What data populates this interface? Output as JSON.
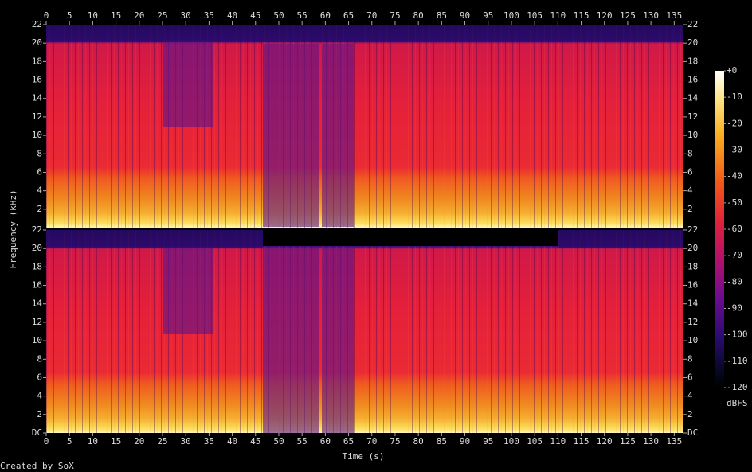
{
  "chart_data": {
    "type": "spectrogram",
    "xlabel": "Time (s)",
    "ylabel": "Frequency (kHz)",
    "footer": "Created by SoX",
    "xlim": [
      0,
      137
    ],
    "xticks": [
      0,
      5,
      10,
      15,
      20,
      25,
      30,
      35,
      40,
      45,
      50,
      55,
      60,
      65,
      70,
      75,
      80,
      85,
      90,
      95,
      100,
      105,
      110,
      115,
      120,
      125,
      130,
      135
    ],
    "ylim": [
      0,
      22
    ],
    "panels": [
      {
        "yticks": [
          2,
          4,
          6,
          8,
          10,
          12,
          14,
          16,
          18,
          20,
          22
        ]
      },
      {
        "yticks": [
          {
            "value": 0,
            "label": "DC"
          },
          2,
          4,
          6,
          8,
          10,
          12,
          14,
          16,
          18,
          20,
          22
        ]
      }
    ],
    "colorbar": {
      "label": "dBFS",
      "lim": [
        -120,
        0
      ],
      "ticks": [
        {
          "value": 0,
          "label": "+0"
        },
        -10,
        -20,
        -30,
        -40,
        -50,
        -60,
        -70,
        -80,
        -90,
        -100,
        -110,
        -120
      ]
    }
  }
}
